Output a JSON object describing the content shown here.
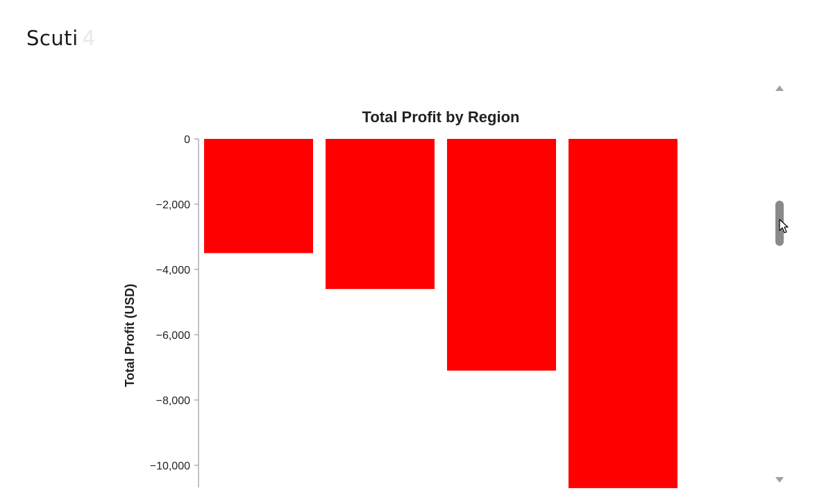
{
  "app": {
    "title": "Scuti",
    "counter": "4"
  },
  "colors": {
    "bar": "#ff0000",
    "axis": "#888888",
    "text": "#222222",
    "scrollbar_thumb": "#8a8a8a",
    "scrollbar_arrow": "#a0a0a0"
  },
  "icons": {
    "scroll_up": "triangle-up-icon",
    "scroll_down": "triangle-down-icon",
    "cursor": "mouse-pointer-icon"
  },
  "chart_data": {
    "type": "bar",
    "title": "Total Profit by Region",
    "xlabel": "",
    "ylabel": "Total Profit (USD)",
    "categories": [
      "",
      "",
      "",
      ""
    ],
    "values": [
      -3500,
      -4600,
      -7100,
      -10700
    ],
    "yticks": [
      0,
      -2000,
      -4000,
      -6000,
      -8000,
      -10000
    ],
    "ytick_labels": [
      "0",
      "−2,000",
      "−4,000",
      "−6,000",
      "−8,000",
      "−10,000"
    ],
    "ylim": [
      -10700,
      0
    ],
    "grid": false,
    "legend": "none"
  }
}
